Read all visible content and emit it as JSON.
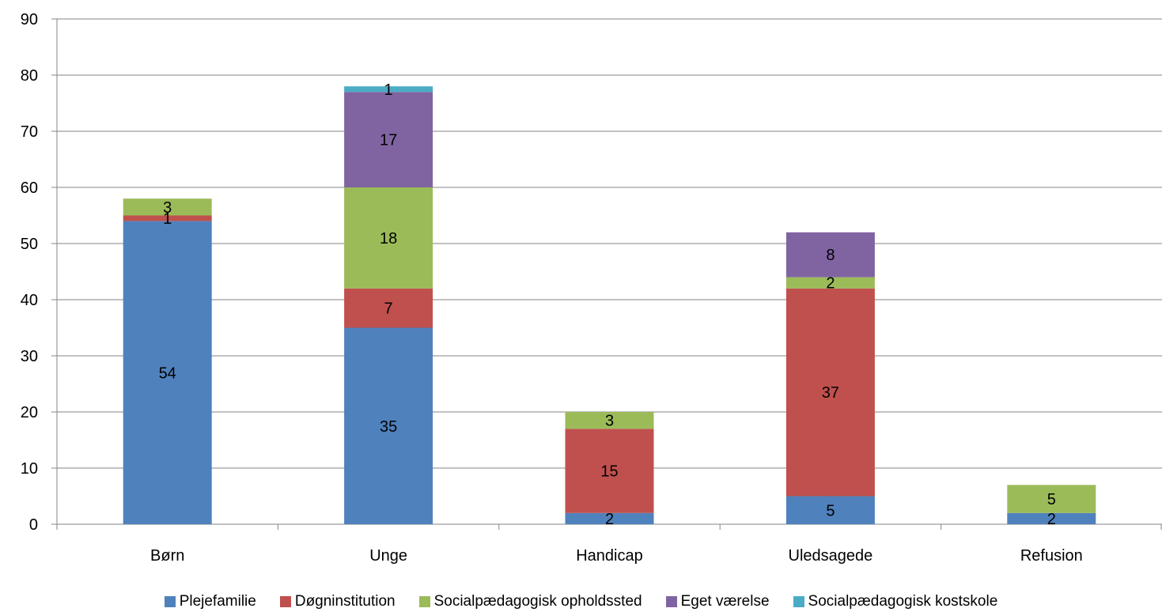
{
  "chart_data": {
    "type": "bar",
    "stacked": true,
    "categories": [
      "Børn",
      "Unge",
      "Handicap",
      "Uledsagede",
      "Refusion"
    ],
    "series": [
      {
        "name": "Plejefamilie",
        "color": "#4F81BD",
        "values": [
          54,
          35,
          2,
          5,
          2
        ]
      },
      {
        "name": "Døgninstitution",
        "color": "#C0504D",
        "values": [
          1,
          7,
          15,
          37,
          0
        ]
      },
      {
        "name": "Socialpædagogisk opholdssted",
        "color": "#9BBB59",
        "values": [
          3,
          18,
          3,
          2,
          5
        ]
      },
      {
        "name": "Eget værelse",
        "color": "#8064A2",
        "values": [
          0,
          17,
          0,
          8,
          0
        ]
      },
      {
        "name": "Socialpædagogisk kostskole",
        "color": "#4BACC6",
        "values": [
          0,
          1,
          0,
          0,
          0
        ]
      }
    ],
    "yticks": [
      "0",
      "10",
      "20",
      "30",
      "40",
      "50",
      "60",
      "70",
      "80",
      "90"
    ],
    "ylim": [
      0,
      90
    ],
    "grid": true,
    "legend_position": "bottom",
    "title": "",
    "xlabel": "",
    "ylabel": ""
  }
}
